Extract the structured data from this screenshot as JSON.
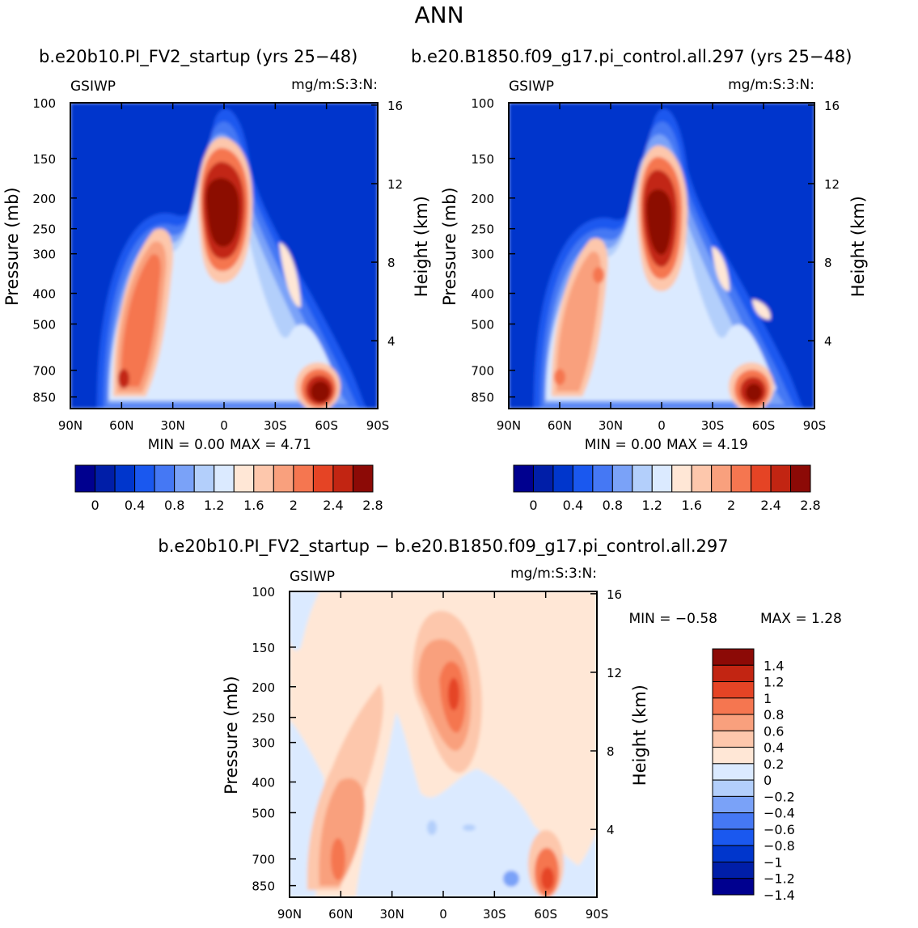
{
  "main_title": "ANN",
  "units_label": "mg/m:S:3:N:",
  "variable_label": "GSIWP",
  "colors": {
    "abs_scale": [
      "#00008f",
      "#001ea8",
      "#0036cc",
      "#1a58ef",
      "#4578f4",
      "#7aa2f8",
      "#b3cffb",
      "#dbeaff",
      "#ffe7d6",
      "#fdc7ac",
      "#f9a07d",
      "#f57650",
      "#e54425",
      "#c22512",
      "#8c0a06"
    ],
    "diff_scale": [
      "#00008f",
      "#001ea8",
      "#0036cc",
      "#1a58ef",
      "#4578f4",
      "#7aa2f8",
      "#b3cffb",
      "#dbeaff",
      "#ffe7d6",
      "#fdc7ac",
      "#f9a07d",
      "#f57650",
      "#e54425",
      "#c22512",
      "#8c0a06"
    ]
  },
  "chart_data": [
    {
      "type": "heatmap",
      "name": "test_case",
      "title": "b.e20b10.PI_FV2_startup (yrs 25−48)",
      "variable": "GSIWP",
      "units": "mg/m:S:3:N:",
      "xlabel": "",
      "ylabel": "Pressure (mb)",
      "ylabel_right": "Height (km)",
      "x_ticks": [
        "90N",
        "60N",
        "30N",
        "0",
        "30S",
        "60S",
        "90S"
      ],
      "y_ticks": [
        100,
        150,
        200,
        250,
        300,
        400,
        500,
        700,
        850
      ],
      "y_ticks_right": [
        16,
        12,
        8,
        4
      ],
      "ylim": [
        100,
        925
      ],
      "min_text": "MIN = 0.00",
      "max_text": "MAX = 4.71",
      "min": 0.0,
      "max": 4.71,
      "colorbar_ticks": [
        "0",
        "0.4",
        "0.8",
        "1.2",
        "1.6",
        "2",
        "2.4",
        "2.8"
      ],
      "features": [
        {
          "lat": 62,
          "p": 720,
          "value": 2.5
        },
        {
          "lat": 40,
          "p": 340,
          "value": 2.3
        },
        {
          "lat": 0,
          "p": 230,
          "value": 3.4
        },
        {
          "lat": -56,
          "p": 810,
          "value": 3.6
        }
      ]
    },
    {
      "type": "heatmap",
      "name": "control_case",
      "title": "b.e20.B1850.f09_g17.pi_control.all.297 (yrs 25−48)",
      "variable": "GSIWP",
      "units": "mg/m:S:3:N:",
      "xlabel": "",
      "ylabel": "Pressure (mb)",
      "ylabel_right": "Height (km)",
      "x_ticks": [
        "90N",
        "60N",
        "30N",
        "0",
        "30S",
        "60S",
        "90S"
      ],
      "y_ticks": [
        100,
        150,
        200,
        250,
        300,
        400,
        500,
        700,
        850
      ],
      "y_ticks_right": [
        16,
        12,
        8,
        4
      ],
      "ylim": [
        100,
        925
      ],
      "min_text": "MIN = 0.00",
      "max_text": "MAX = 4.19",
      "min": 0.0,
      "max": 4.19,
      "colorbar_ticks": [
        "0",
        "0.4",
        "0.8",
        "1.2",
        "1.6",
        "2",
        "2.4",
        "2.8"
      ],
      "features": [
        {
          "lat": 62,
          "p": 720,
          "value": 1.9
        },
        {
          "lat": 38,
          "p": 340,
          "value": 1.9
        },
        {
          "lat": 3,
          "p": 240,
          "value": 3.1
        },
        {
          "lat": -52,
          "p": 820,
          "value": 3.2
        }
      ]
    },
    {
      "type": "heatmap",
      "name": "difference",
      "title": "b.e20b10.PI_FV2_startup − b.e20.B1850.f09_g17.pi_control.all.297",
      "variable": "GSIWP",
      "units": "mg/m:S:3:N:",
      "xlabel": "",
      "ylabel": "Pressure (mb)",
      "ylabel_right": "Height (km)",
      "x_ticks": [
        "90N",
        "60N",
        "30N",
        "0",
        "30S",
        "60S",
        "90S"
      ],
      "y_ticks": [
        100,
        150,
        200,
        250,
        300,
        400,
        500,
        700,
        850
      ],
      "y_ticks_right": [
        16,
        12,
        8,
        4
      ],
      "ylim": [
        100,
        925
      ],
      "min_text": "MIN = −0.58",
      "max_text": "MAX = 1.28",
      "min": -0.58,
      "max": 1.28,
      "colorbar_ticks": [
        "1.4",
        "1.2",
        "1",
        "0.8",
        "0.6",
        "0.4",
        "0.2",
        "0",
        "−0.2",
        "−0.4",
        "−0.6",
        "−0.8",
        "−1",
        "−1.2",
        "−1.4"
      ],
      "features": [
        {
          "lat": 60,
          "p": 720,
          "value": 0.6
        },
        {
          "lat": 50,
          "p": 420,
          "value": 0.4
        },
        {
          "lat": -6,
          "p": 200,
          "value": 1.2
        },
        {
          "lat": -60,
          "p": 830,
          "value": 1.0
        },
        {
          "lat": -40,
          "p": 820,
          "value": -0.4
        },
        {
          "lat": 8,
          "p": 560,
          "value": -0.3
        }
      ]
    }
  ]
}
